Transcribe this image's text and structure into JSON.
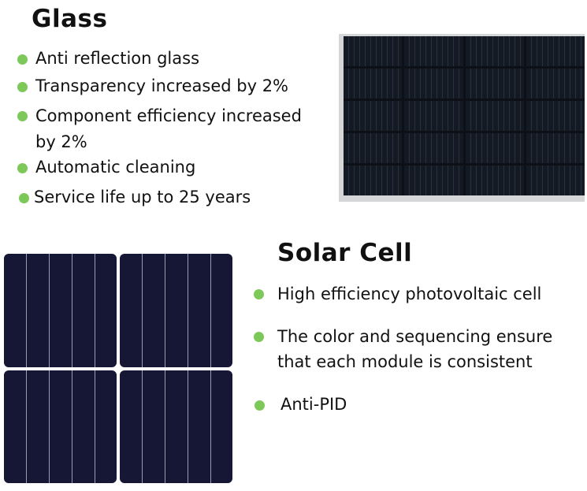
{
  "accent_color": "#7cc95a",
  "glass": {
    "title": "Glass",
    "items": [
      "Anti reflection glass",
      "Transparency increased by 2%",
      "Component efficiency increased",
      "by 2%",
      "Automatic cleaning",
      "Service life up to 25 years"
    ]
  },
  "solar_cell": {
    "title": "Solar Cell",
    "items": [
      "High efficiency photovoltaic cell",
      "The color and sequencing ensure",
      "that each module is consistent",
      "Anti-PID"
    ]
  }
}
